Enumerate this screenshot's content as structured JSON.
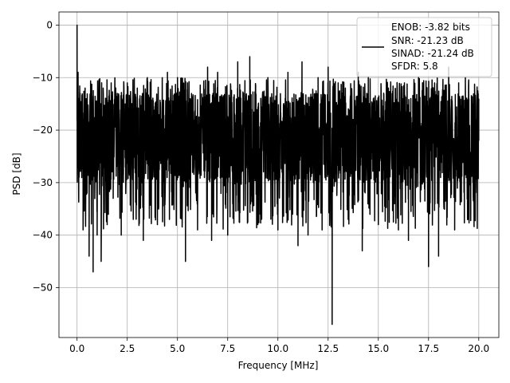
{
  "chart_data": {
    "type": "line",
    "xlabel": "Frequency [MHz]",
    "ylabel": "PSD [dB]",
    "xlim": [
      -0.9,
      21.0
    ],
    "ylim": [
      -59.5,
      2.5
    ],
    "xticks": [
      0.0,
      2.5,
      5.0,
      7.5,
      10.0,
      12.5,
      15.0,
      17.5,
      20.0
    ],
    "xtick_labels": [
      "0.0",
      "2.5",
      "5.0",
      "7.5",
      "10.0",
      "12.5",
      "15.0",
      "17.5",
      "20.0"
    ],
    "yticks": [
      0,
      -10,
      -20,
      -30,
      -40,
      -50
    ],
    "ytick_labels": [
      "0",
      "−10",
      "−20",
      "−30",
      "−40",
      "−50"
    ],
    "grid": true,
    "legend_position": "top-right",
    "legend": {
      "entries": [
        "ENOB: -3.82 bits",
        "SNR: -21.23 dB",
        "SINAD: -21.24 dB",
        "SFDR: 5.8"
      ]
    },
    "series": [
      {
        "color": "#000000",
        "description": "PSD noise floor around -21 dB with values ranging roughly -47 to -6 dB, peak of 0 dB at 0 MHz, deep dip to -57 dB near 12.7 MHz",
        "x": [
          0.0,
          0.02,
          0.05,
          0.1,
          0.15,
          0.2,
          0.3,
          0.4,
          0.5,
          0.6,
          0.7,
          0.8,
          0.9,
          1.0,
          1.1,
          1.2,
          1.3,
          1.5,
          1.7,
          1.8,
          2.0,
          2.2,
          2.5,
          2.8,
          3.0,
          3.3,
          3.5,
          4.0,
          4.5,
          4.6,
          5.0,
          5.4,
          5.5,
          6.0,
          6.5,
          6.7,
          7.0,
          7.5,
          8.0,
          8.6,
          9.0,
          9.5,
          10.0,
          10.5,
          11.0,
          11.2,
          11.5,
          12.0,
          12.2,
          12.5,
          12.7,
          13.0,
          13.5,
          14.0,
          14.2,
          14.5,
          15.0,
          15.5,
          16.0,
          16.3,
          16.5,
          17.0,
          17.5,
          17.8,
          18.0,
          18.5,
          18.8,
          19.0,
          19.5,
          20.0
        ],
        "y": [
          0.0,
          -22.0,
          -9.0,
          -29.0,
          -13.0,
          -18.0,
          -39.0,
          -12.0,
          -32.0,
          -44.0,
          -13.0,
          -47.0,
          -14.0,
          -40.0,
          -15.0,
          -45.0,
          -12.0,
          -38.0,
          -11.0,
          -33.0,
          -13.0,
          -40.0,
          -11.0,
          -37.0,
          -12.0,
          -41.0,
          -10.0,
          -38.0,
          -9.0,
          -37.0,
          -10.0,
          -45.0,
          -11.0,
          -39.0,
          -8.0,
          -41.0,
          -9.0,
          -40.0,
          -7.0,
          -6.0,
          -38.0,
          -10.0,
          -39.0,
          -9.0,
          -42.0,
          -7.0,
          -40.0,
          -10.0,
          -39.0,
          -8.0,
          -57.0,
          -11.0,
          -37.0,
          -9.0,
          -43.0,
          -10.0,
          -38.0,
          -12.0,
          -39.0,
          -11.0,
          -41.0,
          -10.0,
          -46.0,
          -11.0,
          -44.0,
          -8.0,
          -39.0,
          -11.0,
          -37.0,
          -14.0
        ]
      }
    ]
  }
}
